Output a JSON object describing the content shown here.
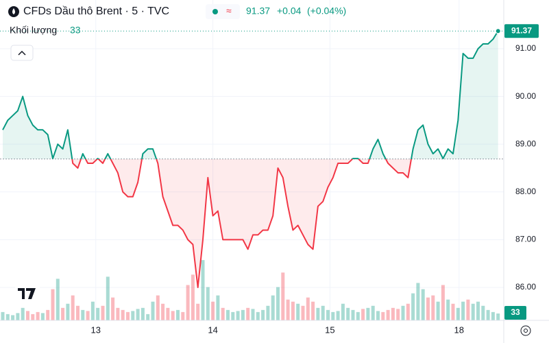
{
  "chart_data": {
    "type": "baseline",
    "title": "CFDs Dầu thô Brent · 5 · TVC",
    "change": "+0.04",
    "change_pct": "(+0.04%)",
    "x": [
      0,
      1,
      2,
      3,
      4,
      5,
      6,
      7,
      8,
      9,
      10,
      11,
      12,
      13,
      14,
      15,
      16,
      17,
      18,
      19,
      20,
      21,
      22,
      23,
      24,
      25,
      26,
      27,
      28,
      29,
      30,
      31,
      32,
      33,
      34,
      35,
      36,
      37,
      38,
      39,
      40,
      41,
      42,
      43,
      44,
      45,
      46,
      47,
      48,
      49,
      50,
      51,
      52,
      53,
      54,
      55,
      56,
      57,
      58,
      59,
      60,
      61,
      62,
      63,
      64,
      65,
      66,
      67,
      68,
      69,
      70,
      71,
      72,
      73,
      74,
      75,
      76,
      77,
      78,
      79,
      80,
      81,
      82,
      83,
      84,
      85,
      86,
      87,
      88,
      89,
      90,
      91,
      92,
      93,
      94,
      95,
      96,
      97,
      98,
      99
    ],
    "series": [
      {
        "name": "Brent",
        "up_color": "#089981",
        "down_color": "#f23645",
        "values": [
          89.3,
          89.5,
          89.6,
          89.7,
          90.0,
          89.6,
          89.4,
          89.3,
          89.3,
          89.2,
          88.7,
          89.0,
          88.9,
          89.3,
          88.6,
          88.5,
          88.8,
          88.6,
          88.6,
          88.7,
          88.6,
          88.8,
          88.6,
          88.4,
          88.0,
          87.9,
          87.9,
          88.2,
          88.8,
          88.9,
          88.9,
          88.6,
          87.9,
          87.6,
          87.3,
          87.3,
          87.2,
          87.0,
          86.9,
          86.0,
          87.0,
          88.3,
          87.5,
          87.6,
          87.0,
          87.0,
          87.0,
          87.0,
          87.0,
          86.8,
          87.1,
          87.1,
          87.2,
          87.2,
          87.5,
          88.5,
          88.3,
          87.7,
          87.2,
          87.3,
          87.1,
          86.9,
          86.8,
          87.7,
          87.8,
          88.1,
          88.3,
          88.6,
          88.6,
          88.6,
          88.7,
          88.7,
          88.6,
          88.6,
          88.9,
          89.1,
          88.8,
          88.6,
          88.5,
          88.4,
          88.4,
          88.3,
          88.9,
          89.3,
          89.4,
          89.0,
          88.8,
          88.9,
          88.7,
          88.9,
          88.8,
          89.5,
          90.9,
          90.8,
          90.8,
          91.0,
          91.1,
          91.1,
          91.2,
          91.37
        ]
      }
    ],
    "baseline": 88.69,
    "volume": {
      "name": "Khối lượng",
      "ylim": [
        0,
        330
      ],
      "values": [
        40,
        30,
        25,
        35,
        60,
        45,
        30,
        40,
        35,
        50,
        150,
        200,
        60,
        80,
        120,
        70,
        50,
        45,
        90,
        60,
        70,
        210,
        110,
        60,
        50,
        40,
        45,
        55,
        60,
        30,
        90,
        120,
        80,
        60,
        45,
        50,
        40,
        170,
        220,
        80,
        290,
        160,
        90,
        120,
        60,
        50,
        40,
        45,
        50,
        60,
        55,
        40,
        50,
        70,
        120,
        160,
        230,
        100,
        90,
        80,
        70,
        110,
        90,
        60,
        70,
        50,
        40,
        45,
        80,
        60,
        50,
        40,
        55,
        60,
        70,
        45,
        40,
        50,
        60,
        55,
        70,
        80,
        130,
        180,
        150,
        110,
        120,
        90,
        170,
        100,
        80,
        60,
        90,
        100,
        80,
        90,
        70,
        50,
        40,
        33
      ]
    },
    "xlim": [
      0,
      100
    ],
    "xticks": [
      {
        "value": 18.6,
        "label": "13"
      },
      {
        "value": 42.0,
        "label": "14"
      },
      {
        "value": 65.4,
        "label": "15"
      },
      {
        "value": 91.2,
        "label": "18"
      }
    ],
    "ylim": [
      85.31,
      92.02
    ],
    "yticks": [
      {
        "value": 86,
        "label": "86.00"
      },
      {
        "value": 87,
        "label": "87.00"
      },
      {
        "value": 88,
        "label": "88.00"
      },
      {
        "value": 89,
        "label": "89.00"
      },
      {
        "value": 90,
        "label": "90.00"
      },
      {
        "value": 91,
        "label": "91.00"
      }
    ],
    "grid": true
  }
}
